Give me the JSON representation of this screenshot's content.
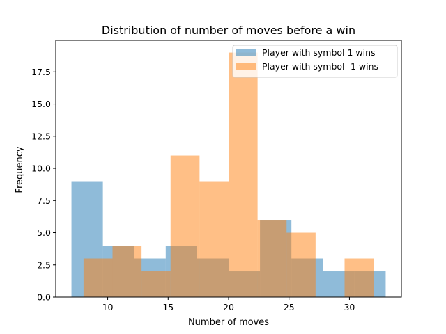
{
  "chart_data": {
    "type": "bar",
    "subtype": "histogram",
    "title": "Distribution of number of moves before a win",
    "xlabel": "Number of moves",
    "ylabel": "Frequency",
    "xlim": [
      5.7,
      34.3
    ],
    "ylim": [
      0,
      19.95
    ],
    "xticks": [
      10,
      15,
      20,
      25,
      30
    ],
    "yticks": [
      0.0,
      2.5,
      5.0,
      7.5,
      10.0,
      12.5,
      15.0,
      17.5
    ],
    "xtick_labels": [
      "10",
      "15",
      "20",
      "25",
      "30"
    ],
    "ytick_labels": [
      "0.0",
      "2.5",
      "5.0",
      "7.5",
      "10.0",
      "12.5",
      "15.0",
      "17.5"
    ],
    "grid": false,
    "legend_position": "top-right",
    "series": [
      {
        "name": "Player with symbol 1 wins",
        "color": "#1f77b4",
        "opacity": 0.5,
        "bin_edges": [
          7.0,
          9.6,
          12.2,
          14.8,
          17.4,
          20.0,
          22.6,
          25.2,
          27.8,
          30.4,
          33.0
        ],
        "values": [
          9,
          4,
          3,
          4,
          3,
          2,
          6,
          3,
          2,
          2
        ]
      },
      {
        "name": "Player with symbol -1 wins",
        "color": "#ff7f0e",
        "opacity": 0.5,
        "bin_edges": [
          8.0,
          10.4,
          12.8,
          15.2,
          17.6,
          20.0,
          22.4,
          24.8,
          27.2,
          29.6,
          32.0
        ],
        "values": [
          3,
          4,
          2,
          11,
          9,
          19,
          6,
          5,
          0,
          3
        ]
      }
    ]
  }
}
